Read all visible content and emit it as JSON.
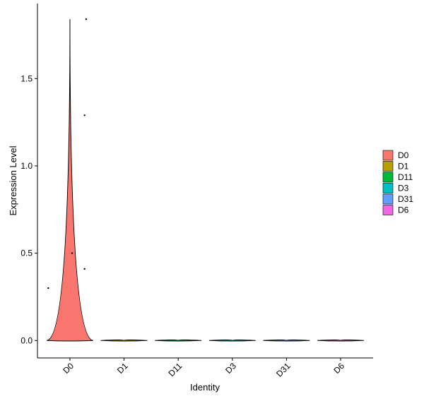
{
  "chart_data": {
    "type": "violin",
    "x_label": "Identity",
    "y_label": "Expression Level",
    "categories": [
      "D0",
      "D1",
      "D11",
      "D3",
      "D31",
      "D6"
    ],
    "colors": [
      "#F8766D",
      "#B79F00",
      "#00BA38",
      "#00BFC4",
      "#619CFF",
      "#F564E3"
    ],
    "max": [
      1.84,
      0,
      0,
      0,
      0,
      0
    ],
    "points": {
      "categories": [
        "D0",
        "D0",
        "D0",
        "D0",
        "D0"
      ],
      "values": [
        0.3,
        0.5,
        0.41,
        1.29,
        1.84
      ]
    },
    "ylim": [
      -0.1,
      1.93
    ],
    "yticks": [
      {
        "value": 0,
        "label": "0.0"
      },
      {
        "value": 0.5,
        "label": "0.5"
      },
      {
        "value": 1,
        "label": "1.0"
      },
      {
        "value": 1.5,
        "label": "1.5"
      }
    ],
    "legend": "right"
  }
}
